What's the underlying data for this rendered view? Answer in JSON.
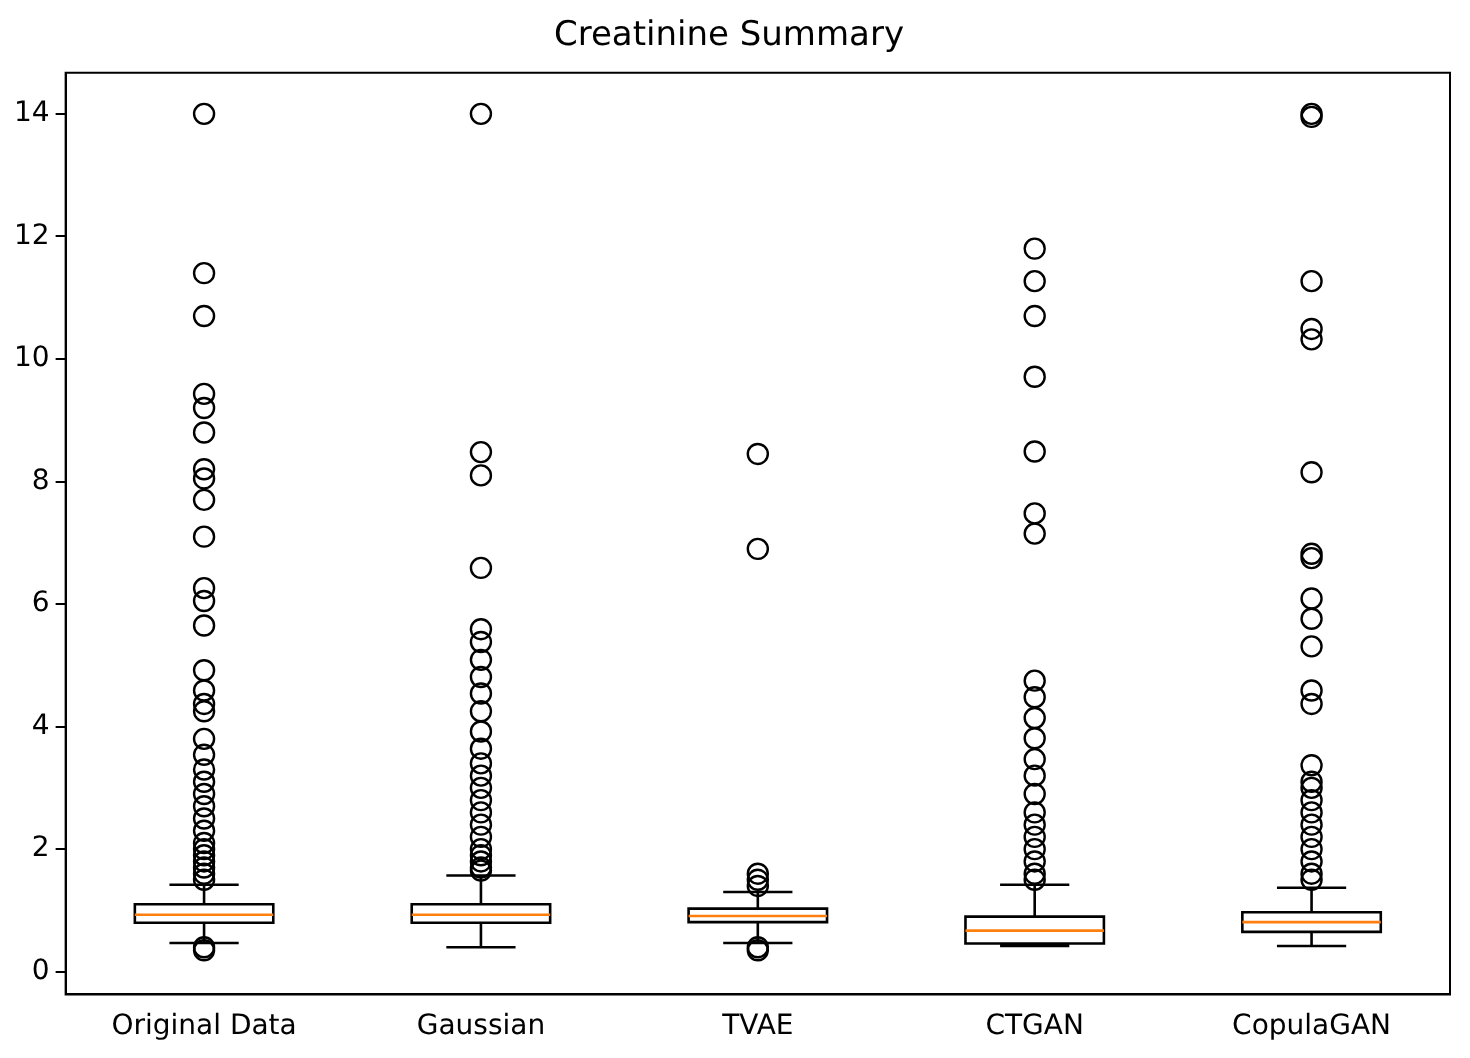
{
  "chart_data": {
    "type": "box",
    "title": "Creatinine Summary",
    "categories": [
      "Original Data",
      "Gaussian",
      "TVAE",
      "CTGAN",
      "CopulaGAN"
    ],
    "series": [
      {
        "color": "#000000",
        "boxes": [
          {
            "low": 0.47,
            "q1": 0.8,
            "median": 0.93,
            "q3": 1.1,
            "high": 1.42,
            "outliers": [
              0.35,
              0.4,
              14.0,
              11.4,
              10.7,
              9.43,
              9.2,
              8.8,
              8.2,
              8.05,
              7.7,
              7.1,
              6.26,
              6.05,
              5.65,
              4.92,
              4.59,
              4.37,
              4.25,
              3.8,
              3.54,
              3.3,
              3.1,
              2.9,
              2.7,
              2.5,
              2.3,
              2.1,
              2.0,
              1.9,
              1.8,
              1.7,
              1.6,
              1.5
            ]
          },
          {
            "low": 0.4,
            "q1": 0.8,
            "median": 0.93,
            "q3": 1.1,
            "high": 1.57,
            "outliers": [
              14.0,
              8.48,
              8.1,
              6.59,
              5.59,
              5.38,
              5.09,
              4.81,
              4.54,
              4.25,
              3.92,
              3.64,
              3.4,
              3.2,
              3.0,
              2.8,
              2.6,
              2.4,
              2.2,
              2.0,
              1.9,
              1.8,
              1.7,
              1.65
            ]
          },
          {
            "low": 0.47,
            "q1": 0.81,
            "median": 0.91,
            "q3": 1.03,
            "high": 1.3,
            "outliers": [
              0.35,
              0.4,
              1.4,
              1.5,
              1.6,
              6.9,
              8.45
            ]
          },
          {
            "low": 0.42,
            "q1": 0.46,
            "median": 0.67,
            "q3": 0.9,
            "high": 1.42,
            "outliers": [
              11.8,
              11.27,
              10.7,
              9.71,
              8.49,
              7.48,
              7.15,
              4.75,
              4.48,
              4.14,
              3.81,
              3.47,
              3.2,
              2.9,
              2.6,
              2.4,
              2.2,
              2.0,
              1.8,
              1.6,
              1.5
            ]
          },
          {
            "low": 0.42,
            "q1": 0.65,
            "median": 0.81,
            "q3": 0.97,
            "high": 1.37,
            "outliers": [
              14.0,
              13.95,
              11.27,
              10.49,
              10.32,
              8.15,
              6.82,
              6.75,
              6.09,
              5.76,
              5.31,
              4.59,
              4.37,
              3.37,
              3.1,
              3.0,
              2.8,
              2.6,
              2.4,
              2.2,
              2.0,
              1.8,
              1.6,
              1.5
            ]
          }
        ]
      }
    ],
    "ylim": [
      -0.37,
      14.67
    ],
    "yticks": [
      0,
      2,
      4,
      6,
      8,
      10,
      12,
      14
    ],
    "grid": false,
    "legend": false
  }
}
